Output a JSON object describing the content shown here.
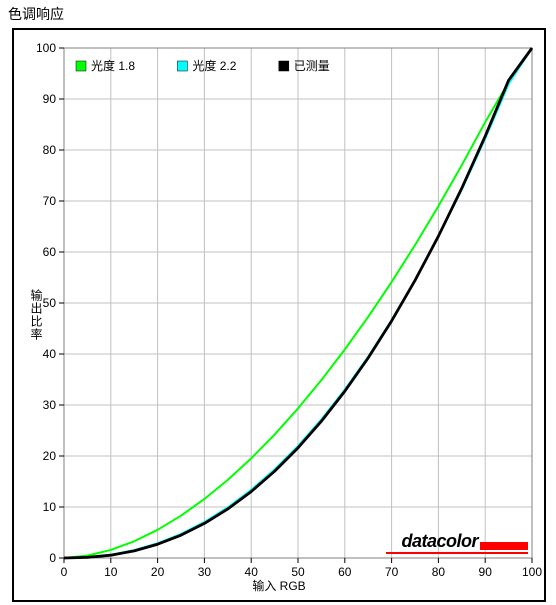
{
  "title": "色调响应",
  "xaxis_label": "输入 RGB",
  "yaxis_label": "输出比率",
  "watermark_text": "datacolor",
  "plot": {
    "background_color": "#ffffff",
    "border_color": "#808080",
    "grid_color": "#c0c0c0",
    "grid_width": 1,
    "xlim": [
      0,
      100
    ],
    "ylim": [
      0,
      100
    ],
    "xtick_step": 10,
    "ytick_step": 10,
    "tick_fontsize": 12,
    "label_fontsize": 12
  },
  "legend": {
    "items": [
      {
        "label": "光度 1.8",
        "color": "#00ff00",
        "marker": "square"
      },
      {
        "label": "光度 2.2",
        "color": "#00ffff",
        "marker": "square"
      },
      {
        "label": "已测量",
        "color": "#000000",
        "marker": "square"
      }
    ],
    "fontsize": 12
  },
  "series": [
    {
      "name": "gamma18",
      "color": "#00ff00",
      "line_width": 2,
      "x": [
        0,
        5,
        10,
        15,
        20,
        25,
        30,
        35,
        40,
        45,
        50,
        55,
        60,
        65,
        70,
        75,
        80,
        85,
        90,
        95,
        100
      ],
      "y": [
        0,
        0.46,
        1.58,
        3.28,
        5.53,
        8.3,
        11.57,
        15.32,
        19.54,
        24.21,
        29.33,
        34.89,
        40.88,
        47.29,
        54.11,
        61.35,
        68.99,
        77.03,
        85.46,
        93.29,
        100
      ]
    },
    {
      "name": "gamma22",
      "color": "#00ffff",
      "line_width": 2,
      "x": [
        0,
        5,
        10,
        15,
        20,
        25,
        30,
        35,
        40,
        45,
        50,
        55,
        60,
        65,
        70,
        75,
        80,
        85,
        90,
        95,
        100
      ],
      "y": [
        0,
        0.14,
        0.63,
        1.54,
        2.89,
        4.73,
        7.07,
        9.95,
        13.38,
        17.38,
        21.97,
        27.18,
        33.02,
        39.5,
        46.65,
        54.48,
        63.0,
        72.24,
        82.2,
        92.9,
        100
      ]
    },
    {
      "name": "measured",
      "color": "#000000",
      "line_width": 2.8,
      "x": [
        0,
        5,
        10,
        15,
        20,
        25,
        30,
        35,
        40,
        45,
        50,
        55,
        60,
        65,
        70,
        75,
        80,
        85,
        90,
        95,
        100
      ],
      "y": [
        0,
        0.12,
        0.55,
        1.4,
        2.7,
        4.48,
        6.78,
        9.62,
        13.02,
        17.01,
        21.6,
        26.82,
        32.7,
        39.24,
        46.48,
        54.42,
        63.1,
        72.52,
        82.7,
        93.66,
        100
      ]
    }
  ],
  "watermark_bar_color": "#ff0000"
}
